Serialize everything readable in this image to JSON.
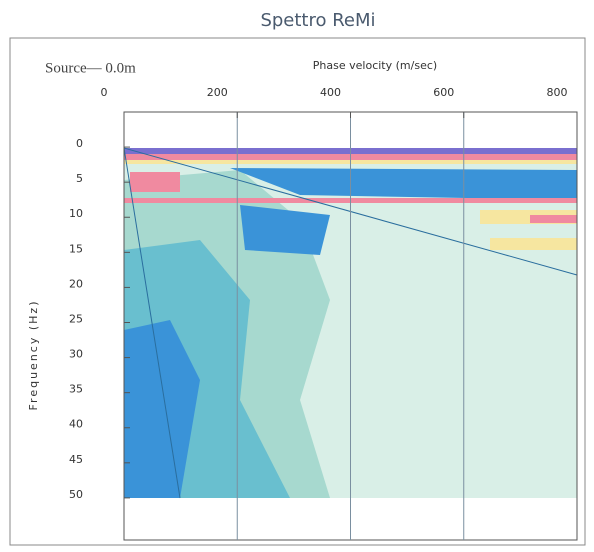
{
  "chart_data": {
    "type": "spectrum",
    "title": "Spettro ReMi",
    "annotation": "Source— 0.0m",
    "xlabel": "Phase velocity (m/sec)",
    "ylabel": "Frequency (Hz)",
    "xlim": [
      0,
      800
    ],
    "xticks": [
      0,
      200,
      400,
      600,
      800
    ],
    "ylim": [
      -5,
      56
    ],
    "yticks": [
      0,
      5,
      10,
      15,
      20,
      25,
      30,
      35,
      40,
      45,
      50
    ],
    "y_inverted": true,
    "grid": true
  }
}
